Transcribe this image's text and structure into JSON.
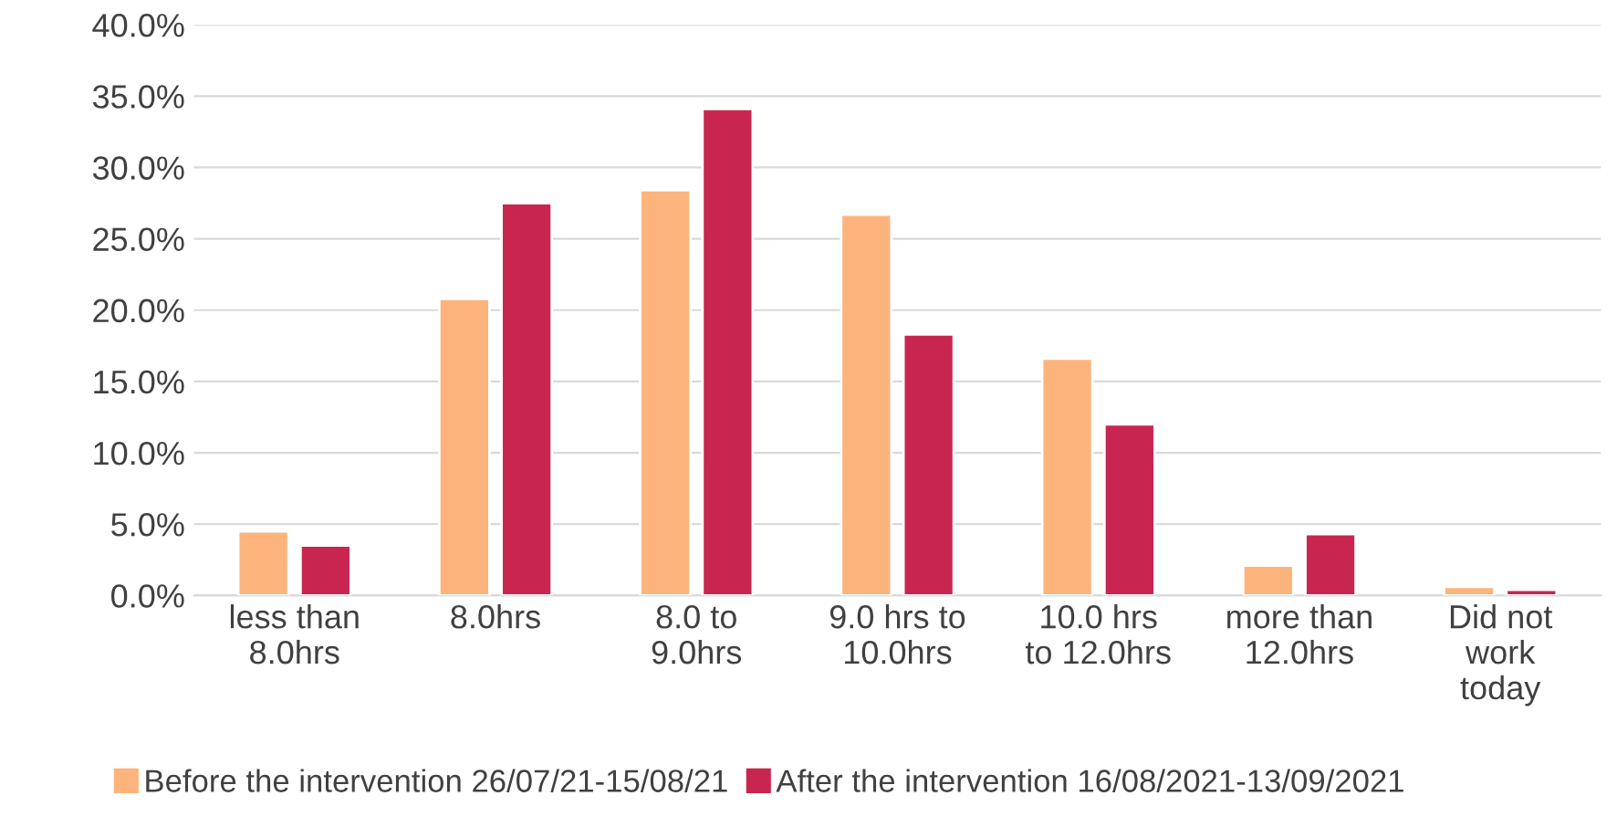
{
  "chart_data": {
    "type": "bar",
    "categories": [
      "less than\n8.0hrs",
      "8.0hrs",
      "8.0 to\n9.0hrs",
      "9.0 hrs to\n10.0hrs",
      "10.0 hrs\nto 12.0hrs",
      "more than\n12.0hrs",
      "Did not\nwork\ntoday"
    ],
    "series": [
      {
        "name": "Before the intervention 26/07/21-15/08/21",
        "color": "#fdb47c",
        "values": [
          4.5,
          20.8,
          28.4,
          26.7,
          16.6,
          2.1,
          0.6
        ]
      },
      {
        "name": "After the intervention 16/08/2021-13/09/2021",
        "color": "#c82650",
        "values": [
          3.5,
          27.5,
          34.1,
          18.3,
          12.0,
          4.3,
          0.4
        ]
      }
    ],
    "ylim": [
      0,
      40
    ],
    "yticks": [
      {
        "value": 0,
        "label": "0.0%"
      },
      {
        "value": 5,
        "label": "5.0%"
      },
      {
        "value": 10,
        "label": "10.0%"
      },
      {
        "value": 15,
        "label": "15.0%"
      },
      {
        "value": 20,
        "label": "20.0%"
      },
      {
        "value": 25,
        "label": "25.0%"
      },
      {
        "value": 30,
        "label": "30.0%"
      },
      {
        "value": 35,
        "label": "35.0%"
      },
      {
        "value": 40,
        "label": "40.0%"
      }
    ],
    "grid": "y",
    "legend": "bottom"
  }
}
